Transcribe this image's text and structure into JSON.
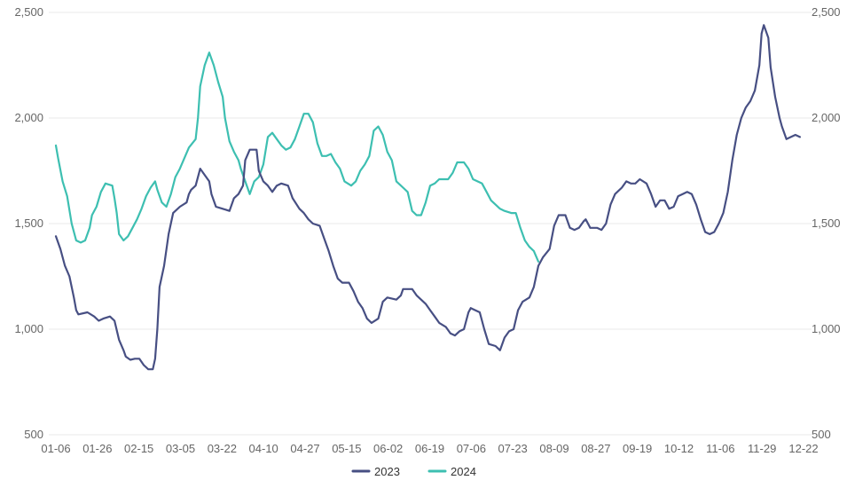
{
  "chart_data": {
    "type": "line",
    "title": "",
    "xlabel": "",
    "ylabel": "",
    "ylim": [
      500,
      2500
    ],
    "yticks": [
      500,
      1000,
      1500,
      2000,
      2500
    ],
    "ytick_labels": [
      "500",
      "1,000",
      "1,500",
      "2,000",
      "2,500"
    ],
    "x_tick_labels": [
      "01-06",
      "01-26",
      "02-15",
      "03-05",
      "03-22",
      "04-10",
      "04-27",
      "05-15",
      "06-02",
      "06-19",
      "07-06",
      "07-23",
      "08-09",
      "08-27",
      "09-19",
      "10-12",
      "11-06",
      "11-29",
      "12-22"
    ],
    "grid": true,
    "legend_position": "bottom",
    "colors": {
      "2023": "#474f83",
      "2024": "#3dbfb1"
    },
    "series": [
      {
        "name": "2023",
        "color": "#474f83",
        "points": [
          [
            0,
            1440
          ],
          [
            2,
            1380
          ],
          [
            4,
            1300
          ],
          [
            6,
            1250
          ],
          [
            8,
            1150
          ],
          [
            9,
            1090
          ],
          [
            10,
            1070
          ],
          [
            14,
            1080
          ],
          [
            17,
            1060
          ],
          [
            19,
            1040
          ],
          [
            21,
            1050
          ],
          [
            24,
            1060
          ],
          [
            26,
            1040
          ],
          [
            28,
            950
          ],
          [
            30,
            900
          ],
          [
            31,
            870
          ],
          [
            33,
            855
          ],
          [
            35,
            860
          ],
          [
            37,
            860
          ],
          [
            39,
            830
          ],
          [
            41,
            810
          ],
          [
            43,
            810
          ],
          [
            44,
            860
          ],
          [
            45,
            1000
          ],
          [
            46,
            1200
          ],
          [
            48,
            1300
          ],
          [
            50,
            1450
          ],
          [
            52,
            1550
          ],
          [
            55,
            1580
          ],
          [
            58,
            1600
          ],
          [
            59,
            1640
          ],
          [
            60,
            1660
          ],
          [
            62,
            1680
          ],
          [
            64,
            1760
          ],
          [
            66,
            1730
          ],
          [
            68,
            1700
          ],
          [
            69,
            1640
          ],
          [
            71,
            1580
          ],
          [
            74,
            1570
          ],
          [
            77,
            1560
          ],
          [
            79,
            1620
          ],
          [
            81,
            1640
          ],
          [
            83,
            1680
          ],
          [
            84,
            1800
          ],
          [
            86,
            1850
          ],
          [
            89,
            1850
          ],
          [
            90,
            1750
          ],
          [
            92,
            1700
          ],
          [
            94,
            1680
          ],
          [
            96,
            1650
          ],
          [
            98,
            1680
          ],
          [
            100,
            1690
          ],
          [
            103,
            1680
          ],
          [
            105,
            1620
          ],
          [
            108,
            1570
          ],
          [
            110,
            1550
          ],
          [
            112,
            1520
          ],
          [
            114,
            1500
          ],
          [
            117,
            1490
          ],
          [
            119,
            1430
          ],
          [
            121,
            1370
          ],
          [
            123,
            1300
          ],
          [
            125,
            1240
          ],
          [
            127,
            1220
          ],
          [
            130,
            1220
          ],
          [
            132,
            1180
          ],
          [
            134,
            1130
          ],
          [
            136,
            1100
          ],
          [
            138,
            1050
          ],
          [
            140,
            1030
          ],
          [
            143,
            1050
          ],
          [
            145,
            1130
          ],
          [
            147,
            1150
          ],
          [
            151,
            1140
          ],
          [
            153,
            1160
          ],
          [
            154,
            1190
          ],
          [
            158,
            1190
          ],
          [
            160,
            1160
          ],
          [
            162,
            1140
          ],
          [
            164,
            1120
          ],
          [
            166,
            1090
          ],
          [
            168,
            1060
          ],
          [
            170,
            1030
          ],
          [
            173,
            1010
          ],
          [
            175,
            980
          ],
          [
            177,
            970
          ],
          [
            179,
            990
          ],
          [
            181,
            1000
          ],
          [
            183,
            1080
          ],
          [
            184,
            1100
          ],
          [
            186,
            1090
          ],
          [
            188,
            1080
          ],
          [
            190,
            1000
          ],
          [
            192,
            930
          ],
          [
            195,
            920
          ],
          [
            197,
            900
          ],
          [
            199,
            960
          ],
          [
            201,
            990
          ],
          [
            203,
            1000
          ],
          [
            205,
            1090
          ],
          [
            207,
            1130
          ],
          [
            210,
            1150
          ],
          [
            212,
            1200
          ],
          [
            214,
            1300
          ],
          [
            216,
            1340
          ],
          [
            219,
            1380
          ],
          [
            221,
            1490
          ],
          [
            223,
            1540
          ],
          [
            226,
            1540
          ],
          [
            228,
            1480
          ],
          [
            230,
            1470
          ],
          [
            232,
            1480
          ],
          [
            234,
            1510
          ],
          [
            235,
            1520
          ],
          [
            237,
            1480
          ],
          [
            240,
            1480
          ],
          [
            242,
            1470
          ],
          [
            244,
            1500
          ],
          [
            246,
            1590
          ],
          [
            248,
            1640
          ],
          [
            251,
            1670
          ],
          [
            253,
            1700
          ],
          [
            255,
            1690
          ],
          [
            257,
            1690
          ],
          [
            259,
            1710
          ],
          [
            262,
            1690
          ],
          [
            264,
            1640
          ],
          [
            266,
            1580
          ],
          [
            268,
            1610
          ],
          [
            270,
            1610
          ],
          [
            272,
            1570
          ],
          [
            274,
            1580
          ],
          [
            276,
            1630
          ],
          [
            278,
            1640
          ],
          [
            280,
            1650
          ],
          [
            282,
            1640
          ],
          [
            284,
            1590
          ],
          [
            286,
            1520
          ],
          [
            288,
            1460
          ],
          [
            290,
            1450
          ],
          [
            292,
            1460
          ],
          [
            294,
            1500
          ],
          [
            296,
            1550
          ],
          [
            298,
            1650
          ],
          [
            300,
            1800
          ],
          [
            302,
            1920
          ],
          [
            304,
            2000
          ],
          [
            306,
            2050
          ],
          [
            308,
            2080
          ],
          [
            310,
            2130
          ],
          [
            312,
            2250
          ],
          [
            313,
            2400
          ],
          [
            314,
            2440
          ],
          [
            316,
            2380
          ],
          [
            317,
            2240
          ],
          [
            319,
            2100
          ],
          [
            321,
            2000
          ],
          [
            322,
            1960
          ],
          [
            324,
            1900
          ],
          [
            326,
            1910
          ],
          [
            328,
            1920
          ],
          [
            330,
            1910
          ]
        ]
      },
      {
        "name": "2024",
        "color": "#3dbfb1",
        "points": [
          [
            0,
            1870
          ],
          [
            1,
            1810
          ],
          [
            3,
            1700
          ],
          [
            5,
            1630
          ],
          [
            7,
            1500
          ],
          [
            9,
            1420
          ],
          [
            11,
            1410
          ],
          [
            13,
            1420
          ],
          [
            15,
            1480
          ],
          [
            16,
            1540
          ],
          [
            18,
            1580
          ],
          [
            20,
            1650
          ],
          [
            22,
            1690
          ],
          [
            25,
            1680
          ],
          [
            26,
            1620
          ],
          [
            27,
            1550
          ],
          [
            28,
            1450
          ],
          [
            30,
            1420
          ],
          [
            32,
            1440
          ],
          [
            34,
            1480
          ],
          [
            36,
            1520
          ],
          [
            38,
            1570
          ],
          [
            40,
            1630
          ],
          [
            42,
            1670
          ],
          [
            44,
            1700
          ],
          [
            45,
            1660
          ],
          [
            47,
            1600
          ],
          [
            49,
            1580
          ],
          [
            51,
            1640
          ],
          [
            53,
            1720
          ],
          [
            55,
            1760
          ],
          [
            57,
            1810
          ],
          [
            59,
            1860
          ],
          [
            62,
            1900
          ],
          [
            63,
            2000
          ],
          [
            64,
            2150
          ],
          [
            66,
            2250
          ],
          [
            68,
            2310
          ],
          [
            70,
            2250
          ],
          [
            72,
            2170
          ],
          [
            74,
            2100
          ],
          [
            75,
            2000
          ],
          [
            77,
            1890
          ],
          [
            79,
            1840
          ],
          [
            81,
            1800
          ],
          [
            82,
            1760
          ],
          [
            84,
            1700
          ],
          [
            86,
            1640
          ],
          [
            88,
            1700
          ],
          [
            90,
            1720
          ],
          [
            92,
            1780
          ],
          [
            94,
            1910
          ],
          [
            96,
            1930
          ],
          [
            98,
            1900
          ],
          [
            100,
            1870
          ],
          [
            102,
            1850
          ],
          [
            104,
            1860
          ],
          [
            106,
            1900
          ],
          [
            108,
            1960
          ],
          [
            110,
            2020
          ],
          [
            112,
            2020
          ],
          [
            114,
            1980
          ],
          [
            116,
            1880
          ],
          [
            118,
            1820
          ],
          [
            120,
            1820
          ],
          [
            122,
            1830
          ],
          [
            124,
            1790
          ],
          [
            126,
            1760
          ],
          [
            128,
            1700
          ],
          [
            131,
            1680
          ],
          [
            133,
            1700
          ],
          [
            135,
            1750
          ],
          [
            137,
            1780
          ],
          [
            139,
            1820
          ],
          [
            141,
            1940
          ],
          [
            143,
            1960
          ],
          [
            145,
            1920
          ],
          [
            147,
            1840
          ],
          [
            149,
            1800
          ],
          [
            151,
            1700
          ],
          [
            154,
            1670
          ],
          [
            156,
            1650
          ],
          [
            158,
            1560
          ],
          [
            160,
            1540
          ],
          [
            162,
            1540
          ],
          [
            164,
            1600
          ],
          [
            166,
            1680
          ],
          [
            168,
            1690
          ],
          [
            170,
            1710
          ],
          [
            172,
            1710
          ],
          [
            174,
            1710
          ],
          [
            176,
            1740
          ],
          [
            178,
            1790
          ],
          [
            181,
            1790
          ],
          [
            183,
            1760
          ],
          [
            185,
            1710
          ],
          [
            187,
            1700
          ],
          [
            189,
            1690
          ],
          [
            191,
            1650
          ],
          [
            193,
            1610
          ],
          [
            195,
            1590
          ],
          [
            197,
            1570
          ],
          [
            199,
            1560
          ],
          [
            202,
            1550
          ],
          [
            204,
            1550
          ],
          [
            206,
            1480
          ],
          [
            208,
            1420
          ],
          [
            210,
            1390
          ],
          [
            212,
            1370
          ],
          [
            214,
            1320
          ]
        ]
      }
    ]
  }
}
